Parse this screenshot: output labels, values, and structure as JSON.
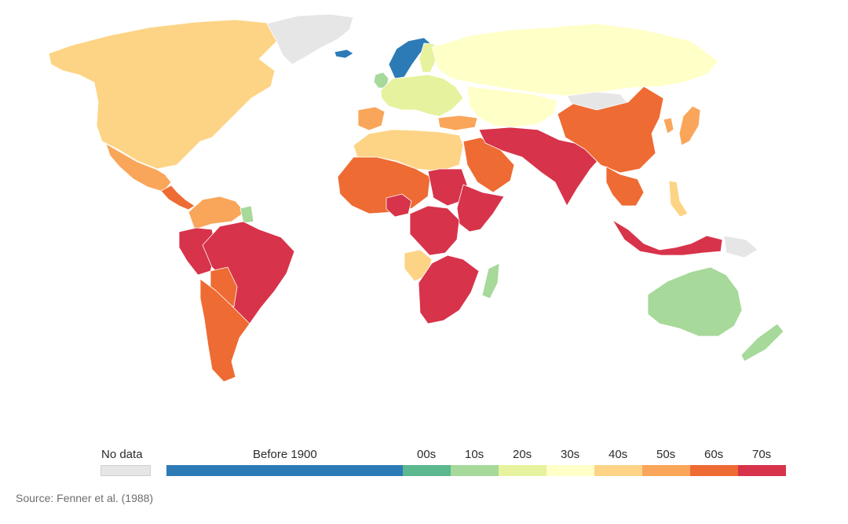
{
  "map": {
    "colors": {
      "no_data": "#e6e6e6",
      "before_1900": "#2c7bb6",
      "00s": "#5cb88e",
      "10s": "#a6d99a",
      "20s": "#e6f29d",
      "30s": "#ffffc8",
      "40s": "#fdd486",
      "50s": "#f9a65a",
      "60s": "#ee6b33",
      "70s": "#d7334a"
    },
    "regions": [
      {
        "name": "north-america",
        "category": "40s"
      },
      {
        "name": "mexico",
        "category": "50s"
      },
      {
        "name": "central-america",
        "category": "60s"
      },
      {
        "name": "greenland",
        "category": "no_data"
      },
      {
        "name": "iceland",
        "category": "before_1900"
      },
      {
        "name": "scandinavia",
        "category": "before_1900"
      },
      {
        "name": "finland",
        "category": "20s"
      },
      {
        "name": "uk",
        "category": "10s"
      },
      {
        "name": "western-europe",
        "category": "20s"
      },
      {
        "name": "iberia",
        "category": "50s"
      },
      {
        "name": "russia",
        "category": "30s"
      },
      {
        "name": "central-asia",
        "category": "30s"
      },
      {
        "name": "mongolia",
        "category": "no_data"
      },
      {
        "name": "turkey",
        "category": "50s"
      },
      {
        "name": "north-africa",
        "category": "40s"
      },
      {
        "name": "west-africa",
        "category": "60s"
      },
      {
        "name": "nigeria",
        "category": "70s"
      },
      {
        "name": "sudan",
        "category": "70s"
      },
      {
        "name": "east-africa",
        "category": "70s"
      },
      {
        "name": "congo",
        "category": "70s"
      },
      {
        "name": "angola",
        "category": "40s"
      },
      {
        "name": "southern-africa",
        "category": "70s"
      },
      {
        "name": "madagascar",
        "category": "10s"
      },
      {
        "name": "arabia",
        "category": "60s"
      },
      {
        "name": "south-asia",
        "category": "70s"
      },
      {
        "name": "china",
        "category": "60s"
      },
      {
        "name": "korea",
        "category": "50s"
      },
      {
        "name": "japan",
        "category": "50s"
      },
      {
        "name": "southeast-asia",
        "category": "60s"
      },
      {
        "name": "philippines",
        "category": "40s"
      },
      {
        "name": "indonesia",
        "category": "70s"
      },
      {
        "name": "new-guinea",
        "category": "no_data"
      },
      {
        "name": "australia",
        "category": "10s"
      },
      {
        "name": "new-zealand",
        "category": "10s"
      },
      {
        "name": "colombia-region",
        "category": "50s"
      },
      {
        "name": "peru",
        "category": "70s"
      },
      {
        "name": "brazil",
        "category": "70s"
      },
      {
        "name": "suriname",
        "category": "10s"
      },
      {
        "name": "bolivia",
        "category": "60s"
      },
      {
        "name": "argentina",
        "category": "60s"
      }
    ]
  },
  "legend": {
    "no_data_label": "No data",
    "items": [
      {
        "label": "Before 1900",
        "color": "#2c7bb6"
      },
      {
        "label": "00s",
        "color": "#5cb88e"
      },
      {
        "label": "10s",
        "color": "#a6d99a"
      },
      {
        "label": "20s",
        "color": "#e6f29d"
      },
      {
        "label": "30s",
        "color": "#ffffc8"
      },
      {
        "label": "40s",
        "color": "#fdd486"
      },
      {
        "label": "50s",
        "color": "#f9a65a"
      },
      {
        "label": "60s",
        "color": "#ee6b33"
      },
      {
        "label": "70s",
        "color": "#d7334a"
      }
    ]
  },
  "source": "Source: Fenner et al. (1988)"
}
